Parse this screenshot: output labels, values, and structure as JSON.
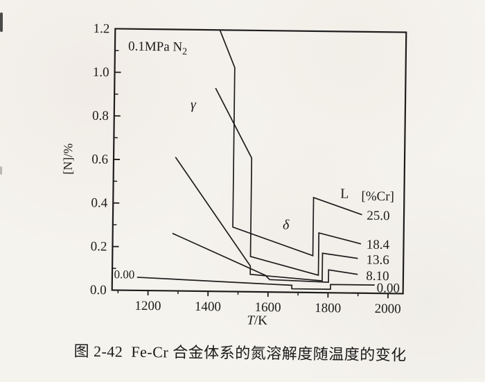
{
  "page": {
    "background": "#f5f3ee",
    "caption": "图 2-42  Fe-Cr 合金体系的氮溶解度随温度的变化"
  },
  "chart_data": {
    "type": "line",
    "title": "图 2-42  Fe-Cr 合金体系的氮溶解度随温度的变化",
    "xlabel": "T/K",
    "ylabel": "[N]/%",
    "xlim": [
      1080,
      2050
    ],
    "ylim": [
      0,
      1.2
    ],
    "grid": false,
    "legend_position": "inline-right",
    "line_color": "#1c1c1c",
    "x_ticks": [
      {
        "v": 1200,
        "label": "1200"
      },
      {
        "v": 1400,
        "label": "1400"
      },
      {
        "v": 1600,
        "label": "1600"
      },
      {
        "v": 1800,
        "label": "1800"
      },
      {
        "v": 2000,
        "label": "2000"
      }
    ],
    "x_minor_ticks": [
      1100,
      1300,
      1500,
      1700,
      1900
    ],
    "y_ticks": [
      {
        "v": 0.0,
        "label": "0.0"
      },
      {
        "v": 0.2,
        "label": "0.2"
      },
      {
        "v": 0.4,
        "label": "0.4"
      },
      {
        "v": 0.6,
        "label": "0.6"
      },
      {
        "v": 0.8,
        "label": "0.8"
      },
      {
        "v": 1.0,
        "label": "1.0"
      },
      {
        "v": 1.2,
        "label": "1.2"
      }
    ],
    "y_minor_ticks": [
      0.1,
      0.3,
      0.5,
      0.7,
      0.9,
      1.1
    ],
    "atmosphere_label": {
      "text": "0.1MPa N",
      "sub": "2",
      "t": 1124,
      "n": 1.124
    },
    "phase_labels": [
      {
        "name": "gamma",
        "text": "γ",
        "t": 1343,
        "n": 0.859,
        "italic": true
      },
      {
        "name": "delta",
        "text": "δ",
        "t": 1657,
        "n": 0.312,
        "italic": true
      },
      {
        "name": "liquid",
        "text": "L",
        "t": 1851,
        "n": 0.458,
        "italic": false
      }
    ],
    "legend_header": {
      "text": "[%Cr]",
      "t": 1907,
      "n": 0.449
    },
    "series": [
      {
        "name": "25.0",
        "cr_percent": 25.0,
        "label_t": 1926,
        "label_n": 0.36,
        "points": [
          [
            1429,
            1.2
          ],
          [
            1480,
            1.028
          ],
          [
            1480,
            0.296
          ],
          [
            1748,
            0.169
          ],
          [
            1748,
            0.436
          ],
          [
            1910,
            0.36
          ]
        ]
      },
      {
        "name": "18.4",
        "cr_percent": 18.4,
        "label_t": 1926,
        "label_n": 0.227,
        "points": [
          [
            1417,
            0.933
          ],
          [
            1540,
            0.614
          ],
          [
            1540,
            0.162
          ],
          [
            1767,
            0.08
          ],
          [
            1767,
            0.274
          ],
          [
            1908,
            0.226
          ]
        ]
      },
      {
        "name": "13.6",
        "cr_percent": 13.6,
        "label_t": 1926,
        "label_n": 0.157,
        "points": [
          [
            1286,
            0.614
          ],
          [
            1540,
            0.118
          ],
          [
            1540,
            0.08
          ],
          [
            1780,
            0.054
          ],
          [
            1780,
            0.181
          ],
          [
            1898,
            0.159
          ]
        ]
      },
      {
        "name": "8.10",
        "cr_percent": 8.1,
        "label_t": 1926,
        "label_n": 0.083,
        "points": [
          [
            1279,
            0.264
          ],
          [
            1591,
            0.076
          ],
          [
            1605,
            0.057
          ],
          [
            1801,
            0.048
          ],
          [
            1801,
            0.105
          ],
          [
            1898,
            0.086
          ]
        ]
      },
      {
        "name": "0.00",
        "cr_percent": 0.0,
        "label_t": 1962,
        "label_n": 0.028,
        "left_label": {
          "text": "0.00",
          "t": 1086,
          "n": 0.074
        },
        "points": [
          [
            1163,
            0.06
          ],
          [
            1679,
            0.032
          ],
          [
            1679,
            0.016
          ],
          [
            1808,
            0.016
          ],
          [
            1808,
            0.038
          ],
          [
            1955,
            0.038
          ]
        ]
      }
    ]
  }
}
